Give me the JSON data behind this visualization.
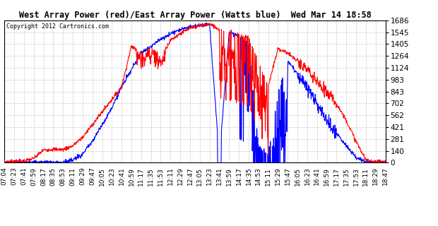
{
  "title": "West Array Power (red)/East Array Power (Watts blue)  Wed Mar 14 18:58",
  "copyright": "Copyright 2012 Cartronics.com",
  "background_color": "#ffffff",
  "grid_color": "#c8c8c8",
  "ymin": 0.0,
  "ymax": 1685.7,
  "yticks": [
    0.0,
    140.5,
    280.9,
    421.4,
    561.9,
    702.4,
    842.8,
    983.3,
    1123.8,
    1264.2,
    1404.7,
    1545.2,
    1685.7
  ],
  "xtick_labels": [
    "07:04",
    "07:23",
    "07:41",
    "07:59",
    "08:17",
    "08:35",
    "08:53",
    "09:11",
    "09:29",
    "09:47",
    "10:05",
    "10:23",
    "10:41",
    "10:59",
    "11:17",
    "11:35",
    "11:53",
    "12:11",
    "12:29",
    "12:47",
    "13:05",
    "13:23",
    "13:41",
    "13:59",
    "14:17",
    "14:35",
    "14:53",
    "15:11",
    "15:29",
    "15:47",
    "16:05",
    "16:23",
    "16:41",
    "16:59",
    "17:17",
    "17:35",
    "17:53",
    "18:11",
    "18:29",
    "18:47"
  ],
  "west_color": "#ff0000",
  "east_color": "#0000ff",
  "linewidth": 0.8
}
